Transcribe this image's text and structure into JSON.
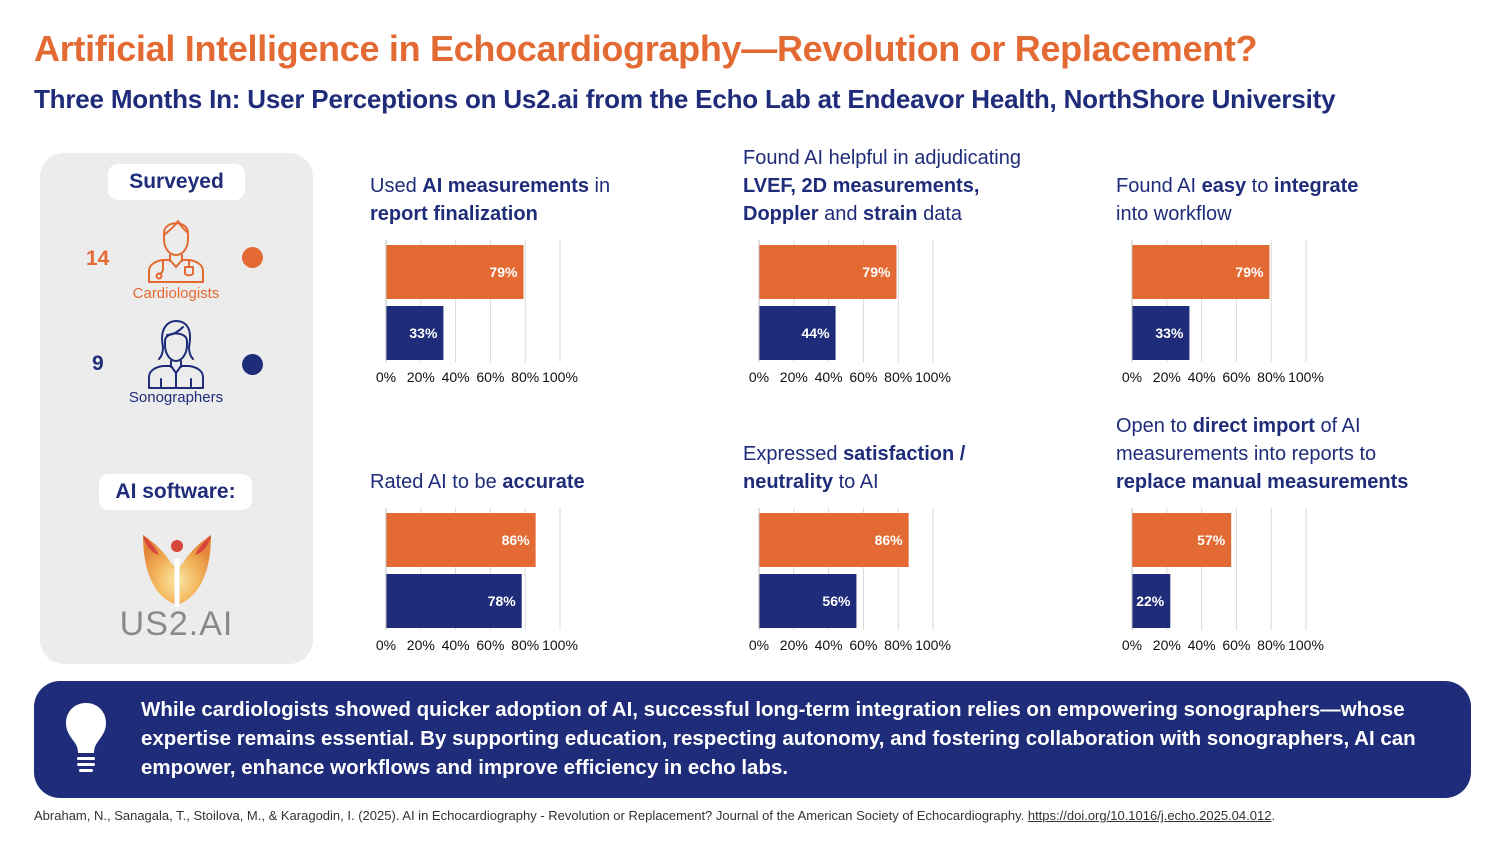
{
  "title": "Artificial Intelligence in Echocardiography—Revolution or Replacement?",
  "subtitle": "Three Months In: User Perceptions on Us2.ai from the Echo Lab at Endeavor Health, NorthShore University",
  "colors": {
    "cardiologists": "#e36a33",
    "sonographers": "#1f2c7a",
    "panel": "#ececec",
    "grid": "#d9d9d9"
  },
  "surveyed": {
    "label": "Surveyed",
    "cardiologists": {
      "count": "14",
      "label": "Cardiologists",
      "icon": "doctor-icon"
    },
    "sonographers": {
      "count": "9",
      "label": "Sonographers",
      "icon": "sonographer-icon"
    }
  },
  "software": {
    "label": "AI software:",
    "logo_text": "US2.AI"
  },
  "chart_data": [
    {
      "type": "bar",
      "title": "Used AI measurements in report finalization",
      "title_parts": [
        [
          "Used ",
          false
        ],
        [
          "AI measurements",
          true
        ],
        [
          " in",
          false
        ],
        [
          "\n",
          false
        ],
        [
          "report finalization",
          true
        ]
      ],
      "series": [
        {
          "name": "Cardiologists",
          "values": [
            79
          ]
        },
        {
          "name": "Sonographers",
          "values": [
            33
          ]
        }
      ],
      "xticks": [
        "0%",
        "20%",
        "40%",
        "60%",
        "80%",
        "100%"
      ],
      "xlim": [
        0,
        100
      ]
    },
    {
      "type": "bar",
      "title": "Found AI helpful in adjudicating LVEF, 2D measurements, Doppler and strain data",
      "title_parts": [
        [
          "Found AI helpful in adjudicating",
          false
        ],
        [
          "\n",
          false
        ],
        [
          "LVEF, 2D measurements,",
          true
        ],
        [
          "\n",
          false
        ],
        [
          "Doppler",
          true
        ],
        [
          " and ",
          false
        ],
        [
          "strain",
          true
        ],
        [
          " data",
          false
        ]
      ],
      "series": [
        {
          "name": "Cardiologists",
          "values": [
            79
          ]
        },
        {
          "name": "Sonographers",
          "values": [
            44
          ]
        }
      ],
      "xticks": [
        "0%",
        "20%",
        "40%",
        "60%",
        "80%",
        "100%"
      ],
      "xlim": [
        0,
        100
      ]
    },
    {
      "type": "bar",
      "title": "Found AI easy to integrate into workflow",
      "title_parts": [
        [
          "Found AI ",
          false
        ],
        [
          "easy",
          true
        ],
        [
          " to ",
          false
        ],
        [
          "integrate",
          true
        ],
        [
          "\n",
          false
        ],
        [
          "into workflow",
          false
        ]
      ],
      "series": [
        {
          "name": "Cardiologists",
          "values": [
            79
          ]
        },
        {
          "name": "Sonographers",
          "values": [
            33
          ]
        }
      ],
      "xticks": [
        "0%",
        "20%",
        "40%",
        "60%",
        "80%",
        "100%"
      ],
      "xlim": [
        0,
        100
      ]
    },
    {
      "type": "bar",
      "title": "Rated AI to be accurate",
      "title_parts": [
        [
          "Rated AI to be ",
          false
        ],
        [
          "accurate",
          true
        ]
      ],
      "series": [
        {
          "name": "Cardiologists",
          "values": [
            86
          ]
        },
        {
          "name": "Sonographers",
          "values": [
            78
          ]
        }
      ],
      "xticks": [
        "0%",
        "20%",
        "40%",
        "60%",
        "80%",
        "100%"
      ],
      "xlim": [
        0,
        100
      ]
    },
    {
      "type": "bar",
      "title": "Expressed satisfaction / neutrality to AI",
      "title_parts": [
        [
          "Expressed ",
          false
        ],
        [
          "satisfaction /",
          true
        ],
        [
          "\n",
          false
        ],
        [
          "neutrality",
          true
        ],
        [
          " to AI",
          false
        ]
      ],
      "series": [
        {
          "name": "Cardiologists",
          "values": [
            86
          ]
        },
        {
          "name": "Sonographers",
          "values": [
            56
          ]
        }
      ],
      "xticks": [
        "0%",
        "20%",
        "40%",
        "60%",
        "80%",
        "100%"
      ],
      "xlim": [
        0,
        100
      ]
    },
    {
      "type": "bar",
      "title": "Open to direct import of AI measurements into reports to replace manual measurements",
      "title_parts": [
        [
          "Open to ",
          false
        ],
        [
          "direct import",
          true
        ],
        [
          " of AI",
          false
        ],
        [
          "\n",
          false
        ],
        [
          "measurements into reports to",
          false
        ],
        [
          "\n",
          false
        ],
        [
          "replace manual measurements",
          true
        ]
      ],
      "series": [
        {
          "name": "Cardiologists",
          "values": [
            57
          ]
        },
        {
          "name": "Sonographers",
          "values": [
            22
          ]
        }
      ],
      "xticks": [
        "0%",
        "20%",
        "40%",
        "60%",
        "80%",
        "100%"
      ],
      "xlim": [
        0,
        100
      ]
    }
  ],
  "conclusion": "While cardiologists showed quicker adoption of AI, successful long-term integration relies on empowering sonographers—whose expertise remains essential. By supporting education, respecting autonomy, and fostering collaboration with sonographers, AI can empower, enhance workflows and improve efficiency in echo labs.",
  "citation": {
    "text": "Abraham, N., Sanagala, T., Stoilova, M., & Karagodin, I. (2025). AI in Echocardiography - Revolution or Replacement? Journal of the American Society of Echocardiography. ",
    "link": "https://doi.org/10.1016/j.echo.2025.04.012",
    "end": "."
  }
}
